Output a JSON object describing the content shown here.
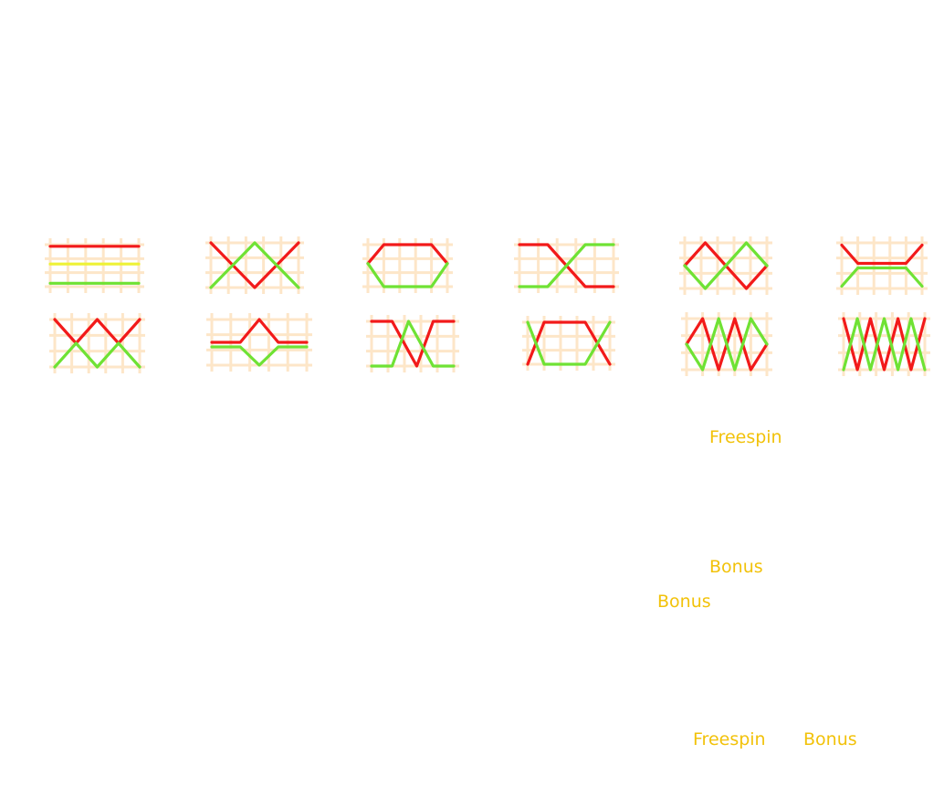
{
  "colors": {
    "grid": "#fde2bf",
    "line_red": "#f21a1a",
    "line_green": "#6fe234",
    "line_yellow": "#eef236",
    "label_text": "#f2c20a"
  },
  "paylines": [
    {
      "id": 1,
      "lines": [
        {
          "color": "red",
          "shape": "top-straight"
        },
        {
          "color": "yellow",
          "shape": "middle-straight"
        },
        {
          "color": "green",
          "shape": "bottom-straight"
        }
      ]
    },
    {
      "id": 2,
      "lines": [
        {
          "color": "red",
          "shape": "v-top-bottom-top"
        },
        {
          "color": "green",
          "shape": "inverted-v-bottom-top-bottom"
        }
      ]
    },
    {
      "id": 3,
      "lines": [
        {
          "color": "red",
          "shape": "hexagon-top"
        },
        {
          "color": "green",
          "shape": "hexagon-bottom"
        }
      ]
    },
    {
      "id": 4,
      "lines": [
        {
          "color": "red",
          "shape": "step-top-to-bottom"
        },
        {
          "color": "green",
          "shape": "step-bottom-to-top"
        }
      ]
    },
    {
      "id": 5,
      "lines": [
        {
          "color": "red",
          "shape": "zigzag-middle-top-middle-bottom-middle"
        },
        {
          "color": "green",
          "shape": "zigzag-middle-bottom-middle-top-middle"
        }
      ]
    },
    {
      "id": 6,
      "lines": [
        {
          "color": "red",
          "shape": "funnel-top"
        },
        {
          "color": "green",
          "shape": "funnel-bottom"
        }
      ]
    },
    {
      "id": 7,
      "lines": [
        {
          "color": "red",
          "shape": "w-top"
        },
        {
          "color": "green",
          "shape": "m-bottom"
        }
      ]
    },
    {
      "id": 8,
      "lines": [
        {
          "color": "red",
          "shape": "bump-up"
        },
        {
          "color": "green",
          "shape": "bump-down"
        }
      ]
    },
    {
      "id": 9,
      "lines": [
        {
          "color": "red",
          "shape": "cross-top"
        },
        {
          "color": "green",
          "shape": "cross-bottom"
        }
      ]
    },
    {
      "id": 10,
      "lines": [
        {
          "color": "red",
          "shape": "box-top"
        },
        {
          "color": "green",
          "shape": "box-bottom"
        }
      ]
    },
    {
      "id": 11,
      "lines": [
        {
          "color": "red",
          "shape": "zigzag-down-first"
        },
        {
          "color": "green",
          "shape": "zigzag-up-first"
        }
      ]
    },
    {
      "id": 12,
      "lines": [
        {
          "color": "red",
          "shape": "sawtooth-red"
        },
        {
          "color": "green",
          "shape": "sawtooth-green"
        }
      ]
    }
  ],
  "labels": {
    "freespin_1": "Freespin",
    "bonus_1": "Bonus",
    "bonus_2": "Bonus",
    "freespin_2": "Freespin",
    "bonus_3": "Bonus"
  }
}
